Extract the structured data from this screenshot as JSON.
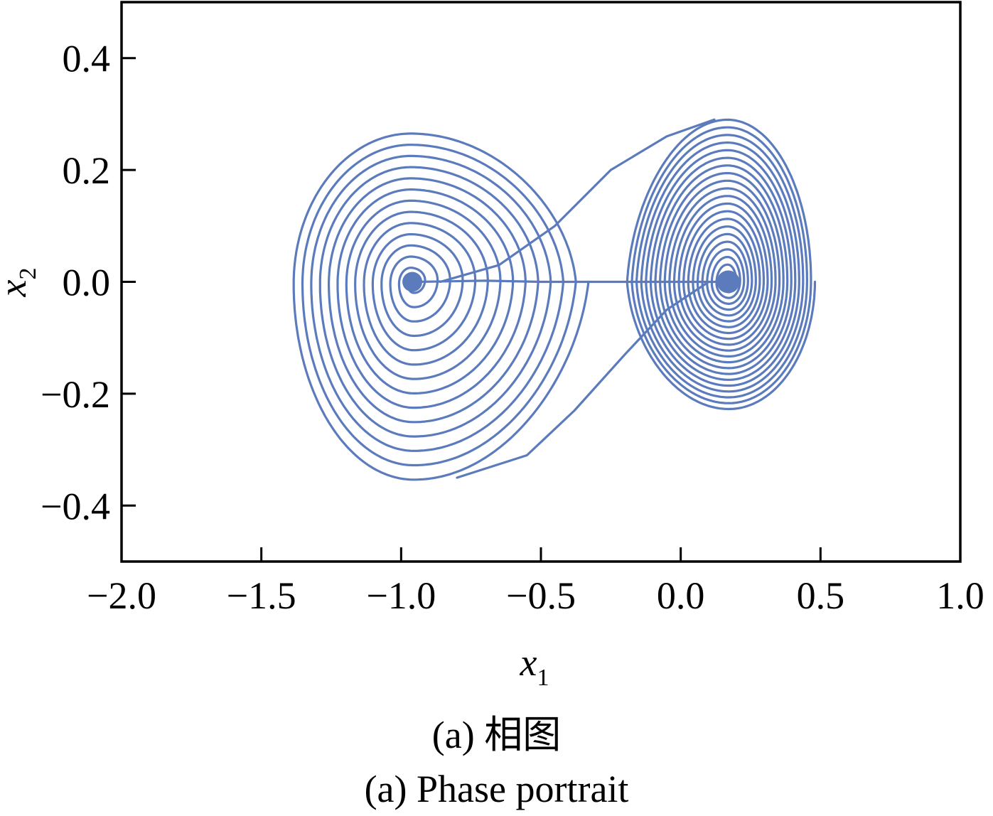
{
  "chart_data": {
    "type": "line",
    "title": "",
    "xlabel": "x",
    "xlabel_subscript": "1",
    "ylabel": "x",
    "ylabel_subscript": "2",
    "xlim": [
      -2.0,
      1.0
    ],
    "ylim": [
      -0.5,
      0.5
    ],
    "xticks": [
      -2.0,
      -1.5,
      -1.0,
      -0.5,
      0.0,
      0.5,
      1.0
    ],
    "xtick_labels": [
      "−2.0",
      "−1.5",
      "−1.0",
      "−0.5",
      "0.0",
      "0.5",
      "1.0"
    ],
    "yticks": [
      0.4,
      0.2,
      0.0,
      -0.2,
      -0.4
    ],
    "ytick_labels": [
      "0.4",
      "0.2",
      "0.0",
      "−0.2",
      "−0.4"
    ],
    "grid": false,
    "legend": "none",
    "series_color": "#5b7bbd",
    "series": [
      {
        "kind": "spiral-left",
        "center": [
          -0.96,
          0.0
        ],
        "outer_left": -1.4,
        "outer_right": -0.33,
        "outer_top": 0.28,
        "outer_bottom": -0.36,
        "turns": 14
      },
      {
        "kind": "spiral-right",
        "center": [
          0.17,
          0.0
        ],
        "outer_left": -0.2,
        "outer_right": 0.48,
        "outer_top": 0.3,
        "outer_bottom": -0.23,
        "turns": 22
      },
      {
        "kind": "connector",
        "x": [
          -0.94,
          -0.7,
          -0.5,
          -0.35,
          -0.2,
          0.0,
          0.17
        ],
        "y": [
          0.0,
          0.002,
          0.0,
          0.0,
          0.0,
          0.0,
          0.0
        ]
      }
    ]
  },
  "caption": {
    "cn": "(a)  相图",
    "en": "(a)  Phase portrait"
  }
}
